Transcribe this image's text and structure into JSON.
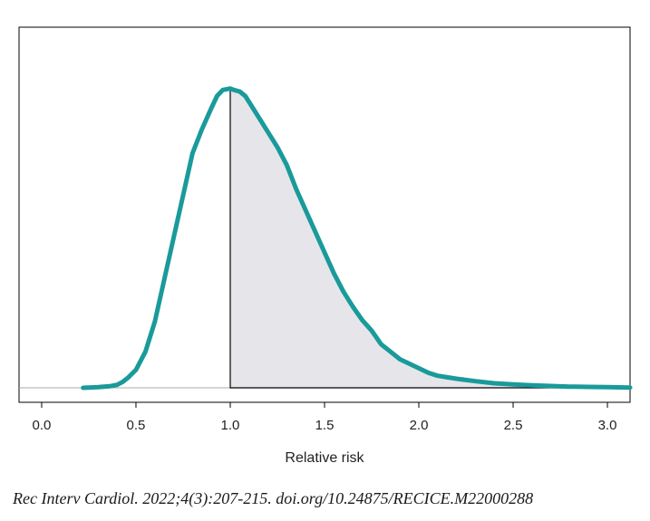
{
  "chart_data": {
    "type": "area",
    "title": "",
    "xlabel": "Relative risk",
    "ylabel": "",
    "xlim": [
      -0.12,
      3.12
    ],
    "ylim": [
      0,
      1.0
    ],
    "xticks": [
      0.0,
      0.5,
      1.0,
      1.5,
      2.0,
      2.5,
      3.0
    ],
    "xtick_labels": [
      "0.0",
      "0.5",
      "1.0",
      "1.5",
      "2.0",
      "2.5",
      "3.0"
    ],
    "grid": false,
    "shade_from_x": 1.0,
    "series": [
      {
        "x": [
          0.22,
          0.3,
          0.36,
          0.4,
          0.43,
          0.46,
          0.5,
          0.55,
          0.6,
          0.65,
          0.7,
          0.75,
          0.8,
          0.85,
          0.9,
          0.93,
          0.96,
          1.0,
          1.02,
          1.05,
          1.08,
          1.1,
          1.15,
          1.2,
          1.25,
          1.3,
          1.35,
          1.4,
          1.45,
          1.5,
          1.55,
          1.6,
          1.65,
          1.7,
          1.75,
          1.8,
          1.85,
          1.9,
          2.0,
          2.05,
          2.1,
          2.15,
          2.2,
          2.3,
          2.4,
          2.5,
          2.6,
          2.7,
          2.8,
          2.9,
          3.0,
          3.12
        ],
        "y": [
          0.0,
          0.002,
          0.005,
          0.01,
          0.02,
          0.035,
          0.06,
          0.12,
          0.22,
          0.36,
          0.5,
          0.64,
          0.78,
          0.86,
          0.93,
          0.97,
          0.99,
          0.995,
          0.99,
          0.985,
          0.97,
          0.95,
          0.9,
          0.85,
          0.8,
          0.74,
          0.66,
          0.59,
          0.52,
          0.45,
          0.38,
          0.32,
          0.27,
          0.225,
          0.19,
          0.145,
          0.12,
          0.095,
          0.065,
          0.05,
          0.04,
          0.035,
          0.03,
          0.022,
          0.015,
          0.011,
          0.008,
          0.006,
          0.004,
          0.003,
          0.002,
          0.001
        ],
        "color": "#1a9a9a"
      }
    ],
    "shade_color": "#e6e6ea"
  },
  "citation": "Rec Interv Cardiol. 2022;4(3):207-215. doi.org/10.24875/RECICE.M22000288"
}
